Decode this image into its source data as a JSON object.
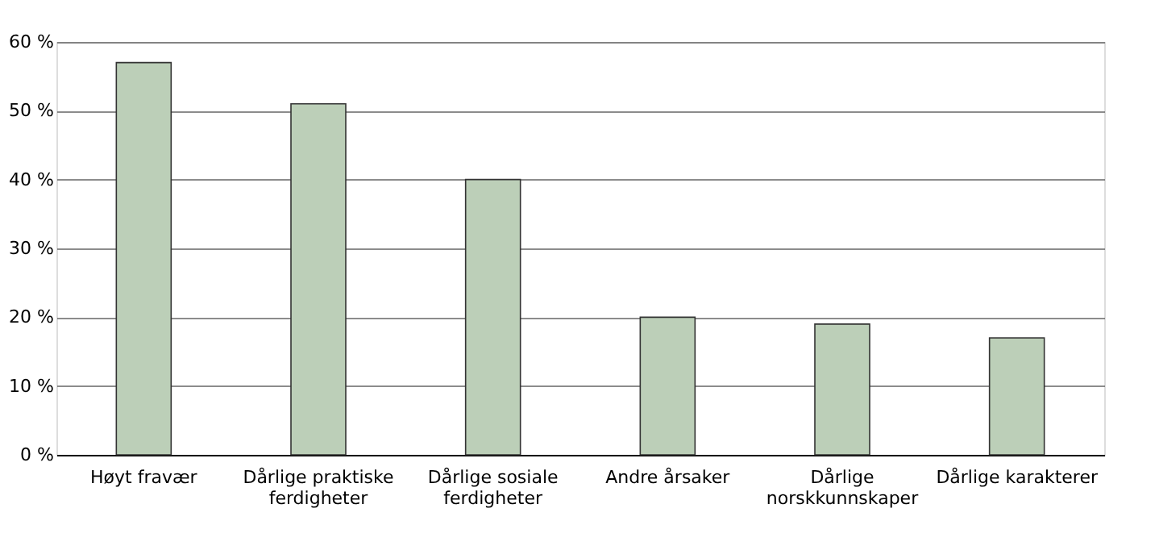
{
  "chart_data": {
    "type": "bar",
    "categories": [
      "Høyt fravær",
      "Dårlige praktiske ferdigheter",
      "Dårlige sosiale ferdigheter",
      "Andre årsaker",
      "Dårlige norskkunnskaper",
      "Dårlige karakterer"
    ],
    "values": [
      57,
      51,
      40,
      20,
      19,
      17
    ],
    "color": "#bccfb8",
    "ylim": [
      0,
      60
    ],
    "yticks": [
      {
        "value": 0,
        "label": "0 %"
      },
      {
        "value": 10,
        "label": "10 %"
      },
      {
        "value": 20,
        "label": "20 %"
      },
      {
        "value": 30,
        "label": "30 %"
      },
      {
        "value": 40,
        "label": "40 %"
      },
      {
        "value": 50,
        "label": "50 %"
      },
      {
        "value": 60,
        "label": "60 %"
      }
    ],
    "grid": "y"
  }
}
